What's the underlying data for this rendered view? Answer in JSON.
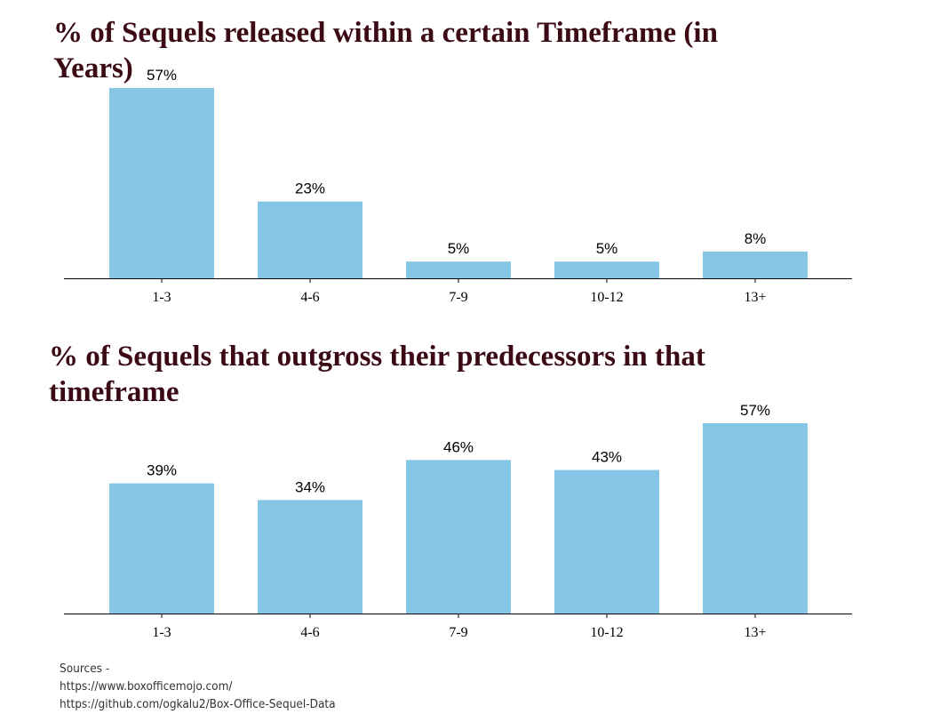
{
  "chart_data": [
    {
      "type": "bar",
      "title": "% of Sequels released within a certain Timeframe (in Years)",
      "categories": [
        "1-3",
        "4-6",
        "7-9",
        "10-12",
        "13+"
      ],
      "values": [
        57,
        23,
        5,
        5,
        8
      ],
      "value_labels": [
        "57%",
        "23%",
        "5%",
        "5%",
        "8%"
      ],
      "xlabel": "",
      "ylabel": "",
      "ylim": [
        0,
        57
      ],
      "grid": false,
      "y_axis_visible": false,
      "bar_color": "#85c5e6"
    },
    {
      "type": "bar",
      "title": "% of Sequels that outgross their predecessors in that timeframe",
      "categories": [
        "1-3",
        "4-6",
        "7-9",
        "10-12",
        "13+"
      ],
      "values": [
        39,
        34,
        46,
        43,
        57
      ],
      "value_labels": [
        "39%",
        "34%",
        "46%",
        "43%",
        "57%"
      ],
      "xlabel": "",
      "ylabel": "",
      "ylim": [
        0,
        57
      ],
      "grid": false,
      "y_axis_visible": false,
      "bar_color": "#85c5e6"
    }
  ],
  "sources": {
    "heading": "Sources -",
    "lines": [
      "https://www.boxofficemojo.com/",
      "https://github.com/ogkalu2/Box-Office-Sequel-Data"
    ]
  },
  "colors": {
    "title": "#3b0a14",
    "bar": "#85c5e6",
    "axis": "#000000"
  }
}
